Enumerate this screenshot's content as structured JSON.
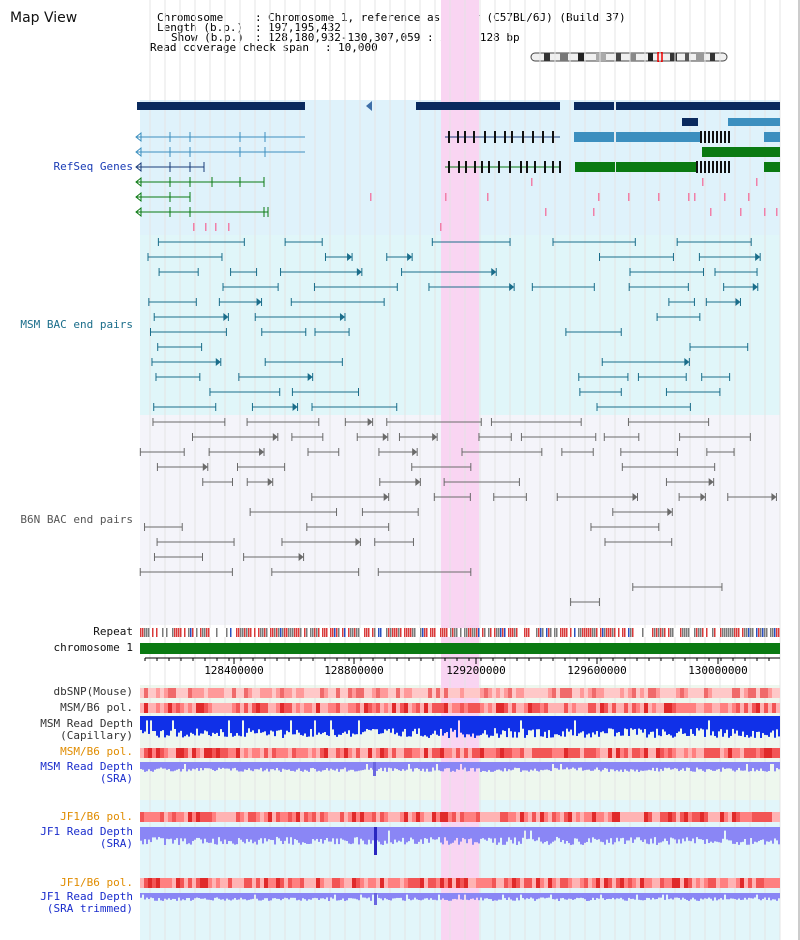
{
  "title": "Map View",
  "info": {
    "chromosome_key": "Chromosome",
    "chromosome_val": "Chromosome 1, reference assembly (C57BL/6J) (Build 37)",
    "length_key": "Length (b.p.)",
    "length_val": "197,195,432",
    "show_key": "Show (b.p.)",
    "show_val": "128,180,932-130,307,059 : 2,126,128 bp",
    "span_key": "Read coverage check span",
    "span_val": "10,000"
  },
  "tracks": {
    "refseq": "RefSeq Genes",
    "msm_bac": "MSM BAC end pairs",
    "b6n_bac": "B6N BAC end pairs",
    "repeat": "Repeat",
    "chromosome": "chromosome 1",
    "dbsnp": "dbSNP(Mouse)",
    "msm_b6_pol": "MSM/B6 pol.",
    "msm_depth_cap": "MSM Read Depth\n(Capillary)",
    "msm_b6_pol2": "MSM/B6 pol.",
    "msm_depth_sra": "MSM Read Depth\n(SRA)",
    "jf1_b6_pol": "JF1/B6 pol.",
    "jf1_depth_sra": "JF1 Read Depth\n(SRA)",
    "jf1_b6_pol2": "JF1/B6 pol.",
    "jf1_depth_trim": "JF1 Read Depth\n(SRA trimmed)"
  },
  "axis": {
    "ticks": [
      "128400000",
      "128800000",
      "129200000",
      "129600000",
      "130000000"
    ]
  },
  "colors": {
    "refseq_bg": "#dff2fb",
    "msm_bg": "#e0f6f9",
    "b6n_bg": "#f4f4fa",
    "highlight": "#f9d5f2",
    "navy": "#0a2a5e",
    "gene_blue": "#3c8fbf",
    "gene_green": "#0a7a12",
    "teal": "#1a6d8a",
    "gray": "#666666",
    "depth_blue": "#1030e8",
    "depth_violet": "#8a86f5",
    "pol_red": "#f04040"
  }
}
